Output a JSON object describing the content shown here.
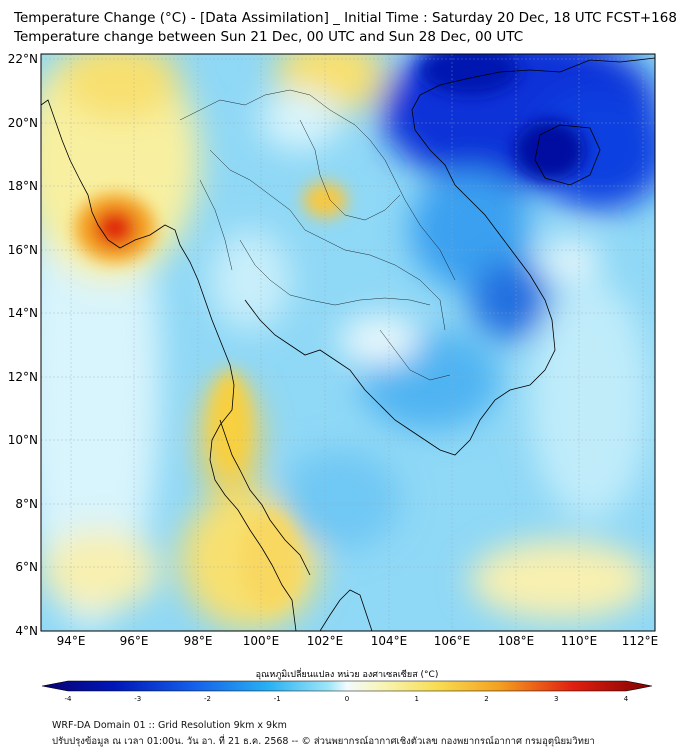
{
  "title_line1": "Temperature Change (°C) - [Data Assimilation] _ Initial Time : Saturday 20 Dec, 18 UTC FCST+168",
  "title_line2": "Temperature change between Sun 21 Dec, 00 UTC and Sun 28 Dec, 00 UTC",
  "lat_labels": [
    "22°N",
    "20°N",
    "18°N",
    "16°N",
    "14°N",
    "12°N",
    "10°N",
    "8°N",
    "6°N",
    "4°N"
  ],
  "lon_labels": [
    "94°E",
    "96°E",
    "98°E",
    "100°E",
    "102°E",
    "104°E",
    "106°E",
    "108°E",
    "110°E",
    "112°E"
  ],
  "colorbar": {
    "label": "อุณหภูมิเปลี่ยนแปลง หน่วย องศาเซลเซียส (°C)",
    "min": -4,
    "max": 4,
    "ticks": [
      "-4",
      "-3",
      "-2",
      "-1",
      "0",
      "1",
      "2",
      "3",
      "4"
    ],
    "colors": [
      "#080060",
      "#0010b0",
      "#1050e8",
      "#20a0f0",
      "#60d0f4",
      "#e8f8fc",
      "#f8f4b0",
      "#f8d040",
      "#f09020",
      "#e02010",
      "#800000"
    ]
  },
  "footer_line1": "WRF-DA Domain 01 :: Grid Resolution 9km x 9km",
  "footer_line2": "ปรับปรุงข้อมูล ณ เวลา 01:00น. วัน อา. ที่ 21 ธ.ค. 2568 -- © ส่วนพยากรณ์อากาศเชิงตัวเลข กองพยากรณ์อากาศ กรมอุตุนิยมวิทยา"
}
